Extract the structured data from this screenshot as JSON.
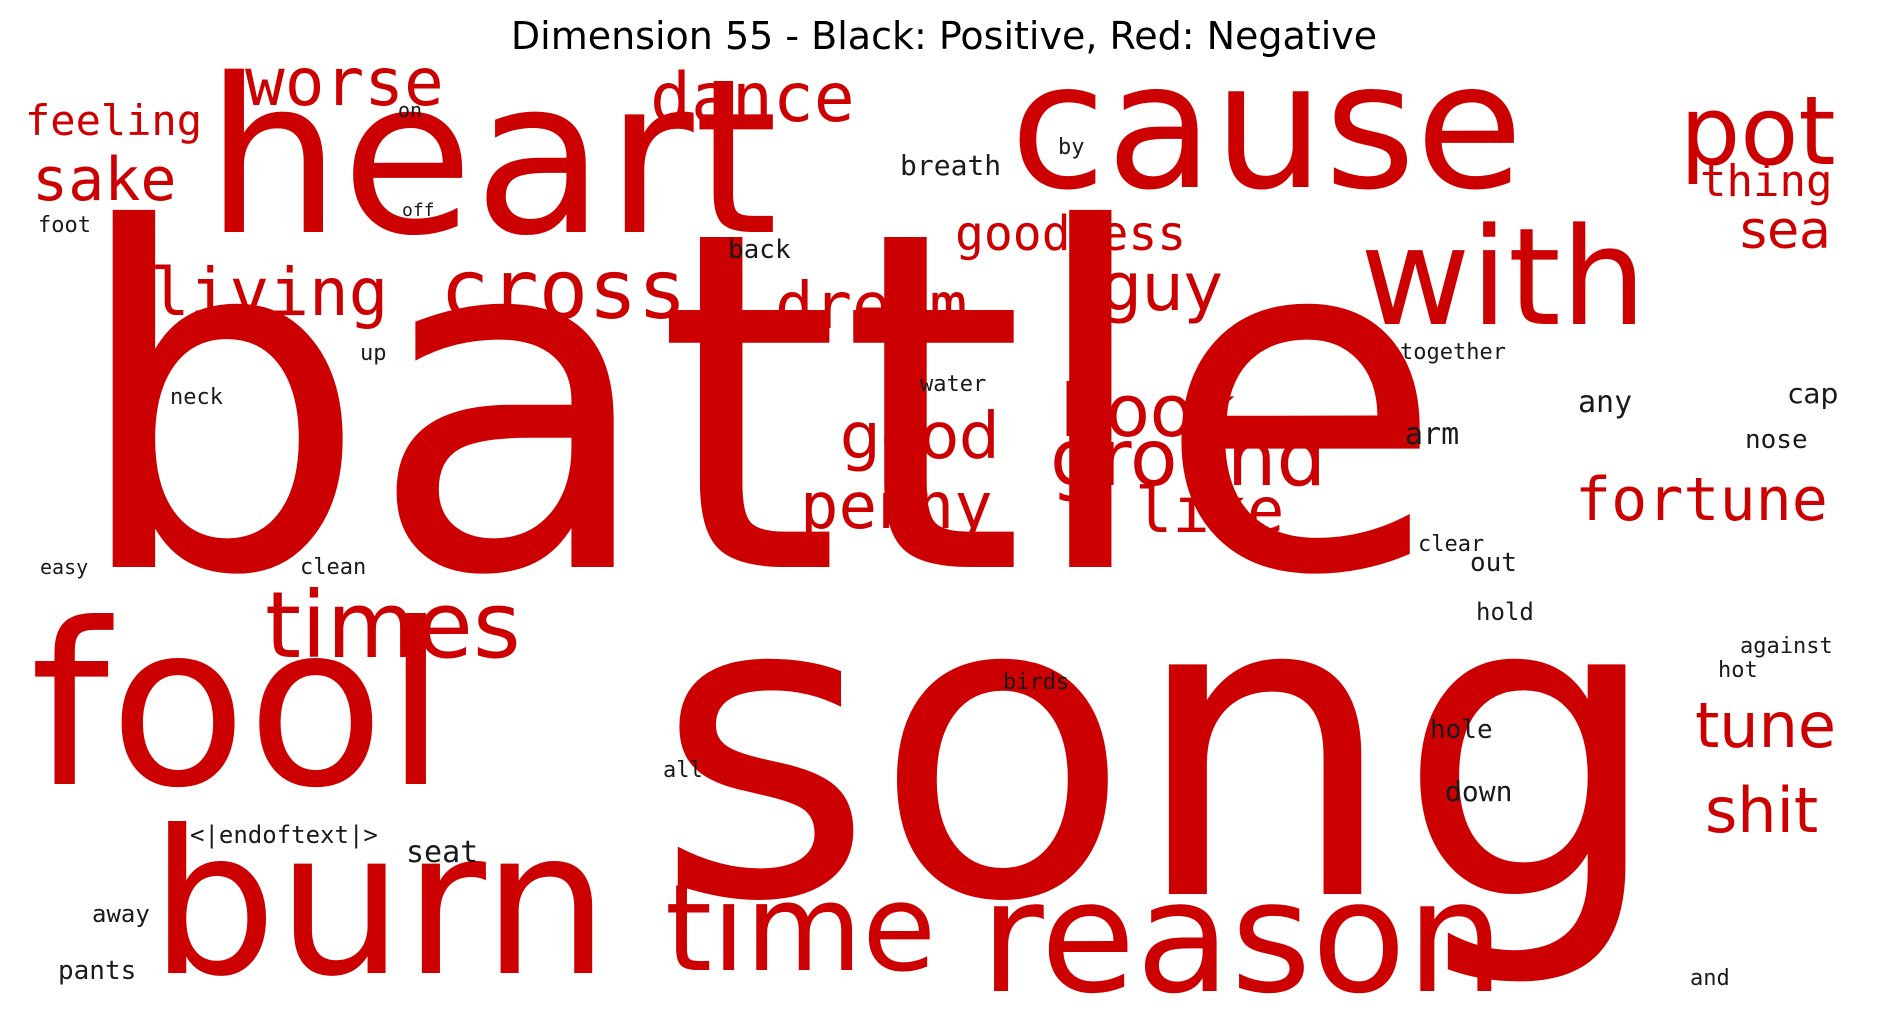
{
  "title": "Dimension 55 - Black: Positive, Red: Negative",
  "colors": {
    "positive": "#1a1a1a",
    "negative": "#cc0000",
    "background": "#ffffff"
  },
  "words": [
    {
      "text": "battle",
      "sign": "negative"
    },
    {
      "text": "song",
      "sign": "negative"
    },
    {
      "text": "heart",
      "sign": "negative"
    },
    {
      "text": "cause",
      "sign": "negative"
    },
    {
      "text": "fool",
      "sign": "negative"
    },
    {
      "text": "burn",
      "sign": "negative"
    },
    {
      "text": "reason",
      "sign": "negative"
    },
    {
      "text": "with",
      "sign": "negative"
    },
    {
      "text": "time",
      "sign": "negative"
    },
    {
      "text": "times",
      "sign": "negative"
    },
    {
      "text": "cross",
      "sign": "negative"
    },
    {
      "text": "pot",
      "sign": "negative"
    },
    {
      "text": "ground",
      "sign": "negative"
    },
    {
      "text": "book",
      "sign": "negative"
    },
    {
      "text": "dance",
      "sign": "negative"
    },
    {
      "text": "worse",
      "sign": "negative"
    },
    {
      "text": "living",
      "sign": "negative"
    },
    {
      "text": "dream",
      "sign": "negative"
    },
    {
      "text": "good",
      "sign": "negative"
    },
    {
      "text": "penny",
      "sign": "negative"
    },
    {
      "text": "like",
      "sign": "negative"
    },
    {
      "text": "fortune",
      "sign": "negative"
    },
    {
      "text": "tune",
      "sign": "negative"
    },
    {
      "text": "shit",
      "sign": "negative"
    },
    {
      "text": "guy",
      "sign": "negative"
    },
    {
      "text": "sake",
      "sign": "negative"
    },
    {
      "text": "goodness",
      "sign": "negative"
    },
    {
      "text": "sea",
      "sign": "negative"
    },
    {
      "text": "feeling",
      "sign": "negative"
    },
    {
      "text": "thing",
      "sign": "negative"
    },
    {
      "text": "breath",
      "sign": "positive"
    },
    {
      "text": "by",
      "sign": "positive"
    },
    {
      "text": "on",
      "sign": "positive"
    },
    {
      "text": "off",
      "sign": "positive"
    },
    {
      "text": "foot",
      "sign": "positive"
    },
    {
      "text": "back",
      "sign": "positive"
    },
    {
      "text": "up",
      "sign": "positive"
    },
    {
      "text": "neck",
      "sign": "positive"
    },
    {
      "text": "water",
      "sign": "positive"
    },
    {
      "text": "together",
      "sign": "positive"
    },
    {
      "text": "any",
      "sign": "positive"
    },
    {
      "text": "cap",
      "sign": "positive"
    },
    {
      "text": "arm",
      "sign": "positive"
    },
    {
      "text": "nose",
      "sign": "positive"
    },
    {
      "text": "clear",
      "sign": "positive"
    },
    {
      "text": "out",
      "sign": "positive"
    },
    {
      "text": "easy",
      "sign": "positive"
    },
    {
      "text": "clean",
      "sign": "positive"
    },
    {
      "text": "hold",
      "sign": "positive"
    },
    {
      "text": "against",
      "sign": "positive"
    },
    {
      "text": "hot",
      "sign": "positive"
    },
    {
      "text": "birds",
      "sign": "positive"
    },
    {
      "text": "hole",
      "sign": "positive"
    },
    {
      "text": "all",
      "sign": "positive"
    },
    {
      "text": "down",
      "sign": "positive"
    },
    {
      "text": "<|endoftext|>",
      "sign": "positive"
    },
    {
      "text": "seat",
      "sign": "positive"
    },
    {
      "text": "away",
      "sign": "positive"
    },
    {
      "text": "pants",
      "sign": "positive"
    },
    {
      "text": "and",
      "sign": "positive"
    }
  ]
}
